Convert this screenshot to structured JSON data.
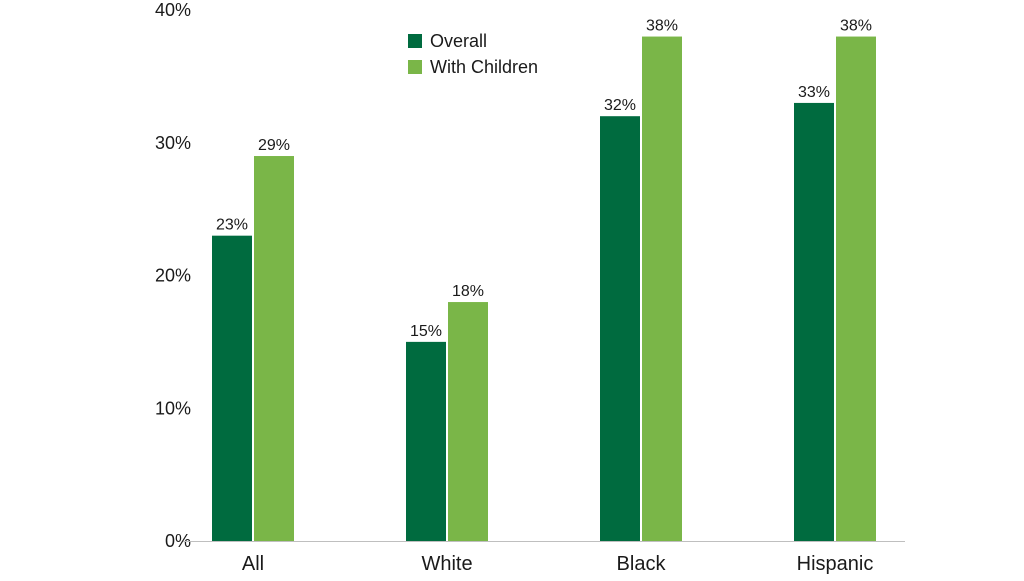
{
  "chart_data": {
    "type": "bar",
    "categories": [
      "All",
      "White",
      "Black",
      "Hispanic"
    ],
    "series": [
      {
        "name": "Overall",
        "values": [
          23,
          15,
          32,
          33
        ],
        "labels": [
          "23%",
          "15%",
          "32%",
          "33%"
        ],
        "color": "#006b3f"
      },
      {
        "name": "With Children",
        "values": [
          29,
          18,
          38,
          38
        ],
        "labels": [
          "29%",
          "18%",
          "38%",
          "38%"
        ],
        "color": "#7ab648"
      }
    ],
    "ylim": [
      0,
      40
    ],
    "yticks": [
      0,
      10,
      20,
      30,
      40
    ],
    "ytick_labels": [
      "0%",
      "10%",
      "20%",
      "30%",
      "40%"
    ],
    "grid": false,
    "legend_position": "top-center",
    "xlabel": "",
    "ylabel": ""
  }
}
